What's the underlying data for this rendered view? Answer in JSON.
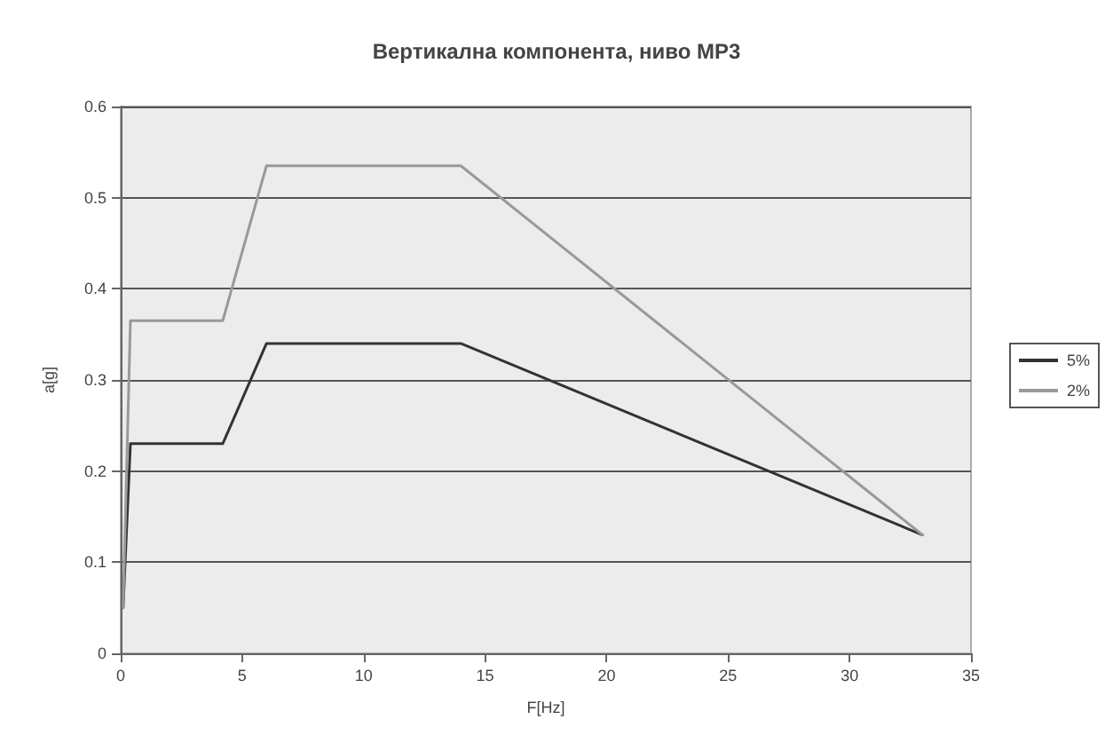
{
  "chart_data": {
    "type": "line",
    "title": "Вертикална компонента, ниво МР3",
    "xlabel": "F[Hz]",
    "ylabel": "a[g]",
    "series": [
      {
        "name": "5%",
        "color": "#333333",
        "x": [
          0.1,
          0.4,
          4.2,
          6,
          14,
          33
        ],
        "values": [
          0.05,
          0.23,
          0.23,
          0.34,
          0.34,
          0.13
        ]
      },
      {
        "name": "2%",
        "color": "#999999",
        "x": [
          0.1,
          0.4,
          4.2,
          6,
          14,
          33
        ],
        "values": [
          0.05,
          0.365,
          0.365,
          0.535,
          0.535,
          0.13
        ]
      }
    ],
    "xlim": [
      0,
      35
    ],
    "xticks": [
      0,
      5,
      10,
      15,
      20,
      25,
      30,
      35
    ],
    "ylim": [
      0,
      0.6
    ],
    "yticks": [
      0,
      0.1,
      0.2,
      0.3,
      0.4,
      0.5,
      0.6
    ],
    "grid": "y",
    "legend": "right",
    "marker": "none",
    "line_style": "solid"
  }
}
